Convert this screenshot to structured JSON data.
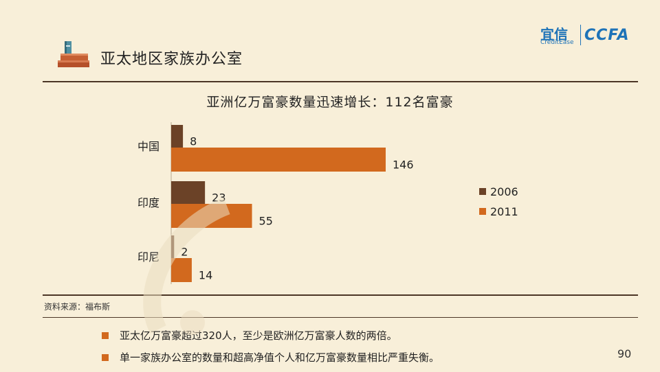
{
  "header": {
    "title": "亚太地区家族办公室",
    "logo_cn": "宜信",
    "logo_en": "CreditEase",
    "logo_ccfa": "CCFA"
  },
  "chart_data": {
    "type": "bar",
    "orientation": "horizontal",
    "title": "亚洲亿万富豪数量迅速增长：112名富豪",
    "categories": [
      "中国",
      "印度",
      "印尼"
    ],
    "series": [
      {
        "name": "2006",
        "values": [
          8,
          23,
          2
        ],
        "color": "#6b4227"
      },
      {
        "name": "2011",
        "values": [
          146,
          55,
          14
        ],
        "color": "#d2691e"
      }
    ],
    "xlim": [
      0,
      160
    ],
    "legend_position": "right",
    "grid": false
  },
  "source": "资料来源：福布斯",
  "bullets": [
    "亚太亿万富豪超过320人，至少是欧洲亿万富豪人数的两倍。",
    "单一家族办公室的数量和超高净值个人和亿万富豪数量相比严重失衡。"
  ],
  "page_number": "90",
  "colors": {
    "background": "#f8efd9",
    "accent": "#d2691e",
    "rule": "#4b3525",
    "brand": "#1e73b8"
  }
}
